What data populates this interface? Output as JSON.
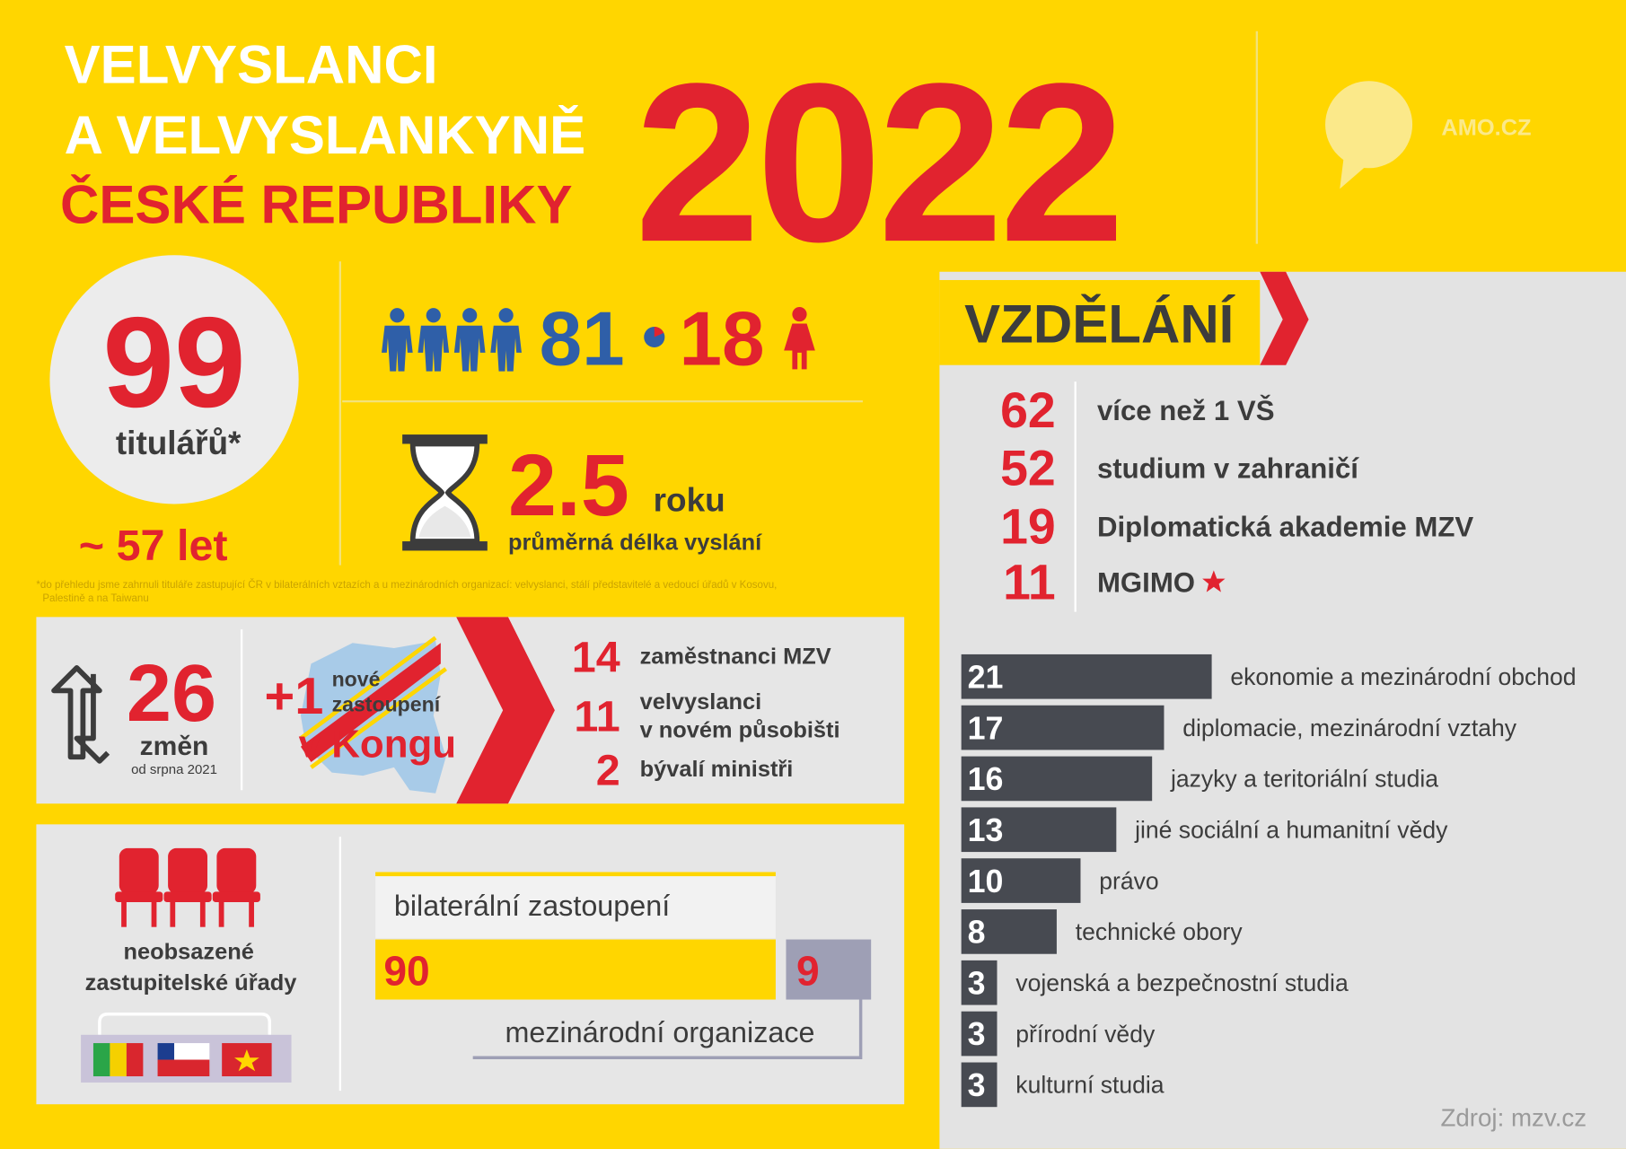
{
  "header": {
    "title_line1": "VELVYSLANCI",
    "title_line2": "A VELVYSLANKYNĚ",
    "title_line3": "ČESKÉ REPUBLIKY",
    "year": "2022",
    "logo_text": "AMO.CZ"
  },
  "summary": {
    "total": "99",
    "total_label": "titulářů*",
    "age": "~ 57 let",
    "men": "81",
    "women": "18",
    "duration": "2.5",
    "duration_unit": "roku",
    "duration_label": "průměrná délka vyslání",
    "footnote": [
      "*do přehledu jsme zahrnuli tituláře zastupující ČR v bilaterálních vztazích a u mezinárodních organizací: velvyslanci, stálí představitelé a vedoucí úřadů v Kosovu,",
      "Palestině a na Taiwanu"
    ]
  },
  "changes": {
    "count": "26",
    "count_label": "změn",
    "since": "od srpna 2021",
    "new_count": "+1",
    "new_label": [
      "nové",
      "zastoupení"
    ],
    "new_place": "v Kongu",
    "breakdown": [
      {
        "value": "14",
        "label": [
          "zaměstnanci MZV"
        ]
      },
      {
        "value": "11",
        "label": [
          "velvyslanci",
          "v novém působišti"
        ]
      },
      {
        "value": "2",
        "label": [
          "bývalí ministři"
        ]
      }
    ]
  },
  "vacant": {
    "label": [
      "neobsazené",
      "zastupitelské úřady"
    ],
    "bilateral_label": "bilaterální zastoupení",
    "bilateral": "90",
    "international": "9",
    "international_label": "mezinárodní organizace"
  },
  "education": {
    "title": "VZDĚLÁNÍ",
    "facts": [
      {
        "value": "62",
        "label": "více než 1 VŠ"
      },
      {
        "value": "52",
        "label": "studium v zahraničí"
      },
      {
        "value": "19",
        "label": "Diplomatická akademie MZV"
      },
      {
        "value": "11",
        "label": "MGIMO"
      }
    ],
    "bar_color": "#474a51",
    "fields": [
      {
        "value": 21,
        "label": "ekonomie a mezinárodní obchod"
      },
      {
        "value": 17,
        "label": "diplomacie, mezinárodní vztahy"
      },
      {
        "value": 16,
        "label": "jazyky a teritoriální studia"
      },
      {
        "value": 13,
        "label": "jiné sociální a humanitní vědy"
      },
      {
        "value": 10,
        "label": "právo"
      },
      {
        "value": 8,
        "label": "technické obory"
      },
      {
        "value": 3,
        "label": "vojenská a bezpečnostní studia"
      },
      {
        "value": 3,
        "label": "přírodní vědy"
      },
      {
        "value": 3,
        "label": "kulturní studia"
      }
    ],
    "source": "Zdroj: mzv.cz"
  }
}
